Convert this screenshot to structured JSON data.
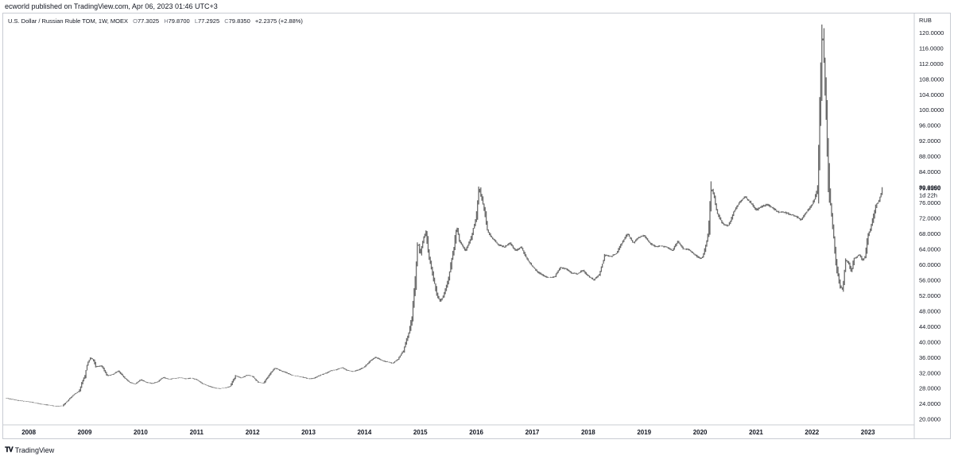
{
  "header": {
    "published": "ecworld published on TradingView.com, Apr 06, 2023 01:46 UTC+3"
  },
  "legend": {
    "symbol": "U.S. Dollar / Russian Ruble TOM, 1W, MOEX",
    "open_label": "O",
    "open": "77.3025",
    "high_label": "H",
    "high": "79.8700",
    "low_label": "L",
    "low": "77.2925",
    "close_label": "C",
    "close": "79.8350",
    "change": "+2.2375 (+2.88%)"
  },
  "price_axis": {
    "currency": "RUB"
  },
  "last_price": {
    "value": "79.8350",
    "countdown": "1d 22h"
  },
  "footer": {
    "brand": "TradingView"
  },
  "colors": {
    "candles": "#6b6b6b",
    "axis_border": "#c9ccd3",
    "text": "#131722"
  },
  "chart_data": {
    "type": "line",
    "title": "",
    "xlabel": "",
    "ylabel": "",
    "ylim": [
      18.7,
      124.7
    ],
    "xlim": [
      2007.6,
      2023.8
    ],
    "grid": false,
    "y_ticks": [
      20,
      24,
      28,
      32,
      36,
      40,
      44,
      48,
      52,
      56,
      60,
      64,
      68,
      72,
      76,
      80,
      84,
      88,
      92,
      96,
      100,
      104,
      108,
      112,
      116,
      120
    ],
    "y_tick_labels": [
      "20.0000",
      "24.0000",
      "28.0000",
      "32.0000",
      "36.0000",
      "40.0000",
      "44.0000",
      "48.0000",
      "52.0000",
      "56.0000",
      "60.0000",
      "64.0000",
      "68.0000",
      "72.0000",
      "76.0000",
      "80.0000",
      "84.0000",
      "88.0000",
      "92.0000",
      "96.0000",
      "100.0000",
      "104.0000",
      "108.0000",
      "112.0000",
      "116.0000",
      "120.0000"
    ],
    "x_ticks": [
      2008,
      2009,
      2010,
      2011,
      2012,
      2013,
      2014,
      2015,
      2016,
      2017,
      2018,
      2019,
      2020,
      2021,
      2022,
      2023
    ],
    "x_tick_labels": [
      "2008",
      "2009",
      "2010",
      "2011",
      "2012",
      "2013",
      "2014",
      "2015",
      "2016",
      "2017",
      "2018",
      "2019",
      "2020",
      "2021",
      "2022",
      "2023"
    ],
    "series": [
      {
        "values": [
          [
            2007.6,
            25.4
          ],
          [
            2007.8,
            24.8
          ],
          [
            2008.0,
            24.5
          ],
          [
            2008.2,
            23.9
          ],
          [
            2008.4,
            23.5
          ],
          [
            2008.5,
            23.3
          ],
          [
            2008.6,
            23.4
          ],
          [
            2008.7,
            24.8
          ],
          [
            2008.8,
            26.3
          ],
          [
            2008.9,
            27.2
          ],
          [
            2008.95,
            29.5
          ],
          [
            2009.0,
            31.0
          ],
          [
            2009.05,
            34.5
          ],
          [
            2009.1,
            35.8
          ],
          [
            2009.15,
            35.4
          ],
          [
            2009.2,
            33.5
          ],
          [
            2009.3,
            33.8
          ],
          [
            2009.4,
            31.2
          ],
          [
            2009.5,
            31.5
          ],
          [
            2009.6,
            32.5
          ],
          [
            2009.7,
            30.8
          ],
          [
            2009.8,
            29.5
          ],
          [
            2009.9,
            29.0
          ],
          [
            2010.0,
            30.2
          ],
          [
            2010.1,
            29.5
          ],
          [
            2010.2,
            29.2
          ],
          [
            2010.3,
            29.6
          ],
          [
            2010.4,
            30.8
          ],
          [
            2010.5,
            30.3
          ],
          [
            2010.6,
            30.5
          ],
          [
            2010.7,
            30.7
          ],
          [
            2010.8,
            30.4
          ],
          [
            2010.9,
            30.6
          ],
          [
            2011.0,
            30.2
          ],
          [
            2011.1,
            29.2
          ],
          [
            2011.2,
            28.6
          ],
          [
            2011.3,
            28.1
          ],
          [
            2011.4,
            27.9
          ],
          [
            2011.5,
            28.0
          ],
          [
            2011.6,
            28.5
          ],
          [
            2011.7,
            31.2
          ],
          [
            2011.8,
            30.6
          ],
          [
            2011.9,
            31.4
          ],
          [
            2012.0,
            31.0
          ],
          [
            2012.1,
            29.5
          ],
          [
            2012.2,
            29.3
          ],
          [
            2012.3,
            31.5
          ],
          [
            2012.4,
            33.2
          ],
          [
            2012.5,
            32.5
          ],
          [
            2012.6,
            32.0
          ],
          [
            2012.7,
            31.3
          ],
          [
            2012.8,
            31.1
          ],
          [
            2012.9,
            30.8
          ],
          [
            2013.0,
            30.4
          ],
          [
            2013.1,
            30.6
          ],
          [
            2013.2,
            31.3
          ],
          [
            2013.3,
            31.8
          ],
          [
            2013.4,
            32.5
          ],
          [
            2013.5,
            32.8
          ],
          [
            2013.6,
            33.3
          ],
          [
            2013.7,
            32.5
          ],
          [
            2013.8,
            32.3
          ],
          [
            2013.9,
            32.8
          ],
          [
            2014.0,
            33.5
          ],
          [
            2014.1,
            35.0
          ],
          [
            2014.2,
            36.0
          ],
          [
            2014.3,
            35.2
          ],
          [
            2014.4,
            34.8
          ],
          [
            2014.5,
            34.4
          ],
          [
            2014.6,
            35.5
          ],
          [
            2014.7,
            37.8
          ],
          [
            2014.75,
            40.5
          ],
          [
            2014.8,
            42.5
          ],
          [
            2014.85,
            46.5
          ],
          [
            2014.9,
            54.0
          ],
          [
            2014.95,
            66.0
          ],
          [
            2015.0,
            62.5
          ],
          [
            2015.05,
            66.5
          ],
          [
            2015.1,
            68.5
          ],
          [
            2015.15,
            62.5
          ],
          [
            2015.2,
            58.5
          ],
          [
            2015.3,
            52.0
          ],
          [
            2015.35,
            50.5
          ],
          [
            2015.4,
            51.5
          ],
          [
            2015.5,
            56.0
          ],
          [
            2015.6,
            64.5
          ],
          [
            2015.65,
            70.0
          ],
          [
            2015.7,
            66.0
          ],
          [
            2015.8,
            63.5
          ],
          [
            2015.9,
            66.5
          ],
          [
            2016.0,
            72.5
          ],
          [
            2016.05,
            80.0
          ],
          [
            2016.1,
            77.0
          ],
          [
            2016.15,
            73.5
          ],
          [
            2016.2,
            68.5
          ],
          [
            2016.3,
            66.5
          ],
          [
            2016.4,
            65.0
          ],
          [
            2016.5,
            64.5
          ],
          [
            2016.6,
            65.5
          ],
          [
            2016.7,
            63.5
          ],
          [
            2016.8,
            64.5
          ],
          [
            2016.9,
            61.5
          ],
          [
            2017.0,
            59.5
          ],
          [
            2017.1,
            58.0
          ],
          [
            2017.2,
            57.0
          ],
          [
            2017.3,
            56.5
          ],
          [
            2017.4,
            56.8
          ],
          [
            2017.5,
            59.2
          ],
          [
            2017.6,
            58.8
          ],
          [
            2017.7,
            57.8
          ],
          [
            2017.8,
            57.5
          ],
          [
            2017.9,
            58.5
          ],
          [
            2018.0,
            57.0
          ],
          [
            2018.1,
            56.0
          ],
          [
            2018.2,
            57.5
          ],
          [
            2018.3,
            62.5
          ],
          [
            2018.4,
            62.0
          ],
          [
            2018.5,
            62.8
          ],
          [
            2018.6,
            65.5
          ],
          [
            2018.7,
            68.0
          ],
          [
            2018.8,
            65.5
          ],
          [
            2018.9,
            67.0
          ],
          [
            2019.0,
            67.5
          ],
          [
            2019.1,
            65.5
          ],
          [
            2019.2,
            64.5
          ],
          [
            2019.3,
            64.8
          ],
          [
            2019.4,
            64.5
          ],
          [
            2019.5,
            63.5
          ],
          [
            2019.6,
            66.0
          ],
          [
            2019.7,
            64.0
          ],
          [
            2019.8,
            63.8
          ],
          [
            2019.9,
            62.5
          ],
          [
            2020.0,
            61.5
          ],
          [
            2020.05,
            62.0
          ],
          [
            2020.1,
            65.0
          ],
          [
            2020.15,
            68.0
          ],
          [
            2020.2,
            80.0
          ],
          [
            2020.25,
            77.5
          ],
          [
            2020.3,
            73.5
          ],
          [
            2020.4,
            70.5
          ],
          [
            2020.5,
            70.0
          ],
          [
            2020.55,
            71.5
          ],
          [
            2020.6,
            73.5
          ],
          [
            2020.7,
            76.0
          ],
          [
            2020.8,
            77.5
          ],
          [
            2020.9,
            76.0
          ],
          [
            2021.0,
            74.0
          ],
          [
            2021.1,
            75.0
          ],
          [
            2021.2,
            75.5
          ],
          [
            2021.3,
            74.5
          ],
          [
            2021.4,
            73.5
          ],
          [
            2021.5,
            73.5
          ],
          [
            2021.6,
            73.0
          ],
          [
            2021.7,
            72.5
          ],
          [
            2021.8,
            71.5
          ],
          [
            2021.9,
            73.5
          ],
          [
            2022.0,
            75.5
          ],
          [
            2022.05,
            77.0
          ],
          [
            2022.1,
            80.0
          ],
          [
            2022.15,
            104.0
          ],
          [
            2022.18,
            120.0
          ],
          [
            2022.2,
            118.0
          ],
          [
            2022.25,
            102.0
          ],
          [
            2022.3,
            80.0
          ],
          [
            2022.35,
            73.0
          ],
          [
            2022.4,
            65.0
          ],
          [
            2022.45,
            58.0
          ],
          [
            2022.5,
            54.5
          ],
          [
            2022.55,
            53.5
          ],
          [
            2022.6,
            61.0
          ],
          [
            2022.65,
            60.5
          ],
          [
            2022.7,
            58.0
          ],
          [
            2022.75,
            61.5
          ],
          [
            2022.8,
            62.0
          ],
          [
            2022.85,
            62.5
          ],
          [
            2022.9,
            61.0
          ],
          [
            2022.95,
            62.0
          ],
          [
            2023.0,
            67.5
          ],
          [
            2023.05,
            69.5
          ],
          [
            2023.1,
            72.5
          ],
          [
            2023.15,
            75.5
          ],
          [
            2023.2,
            76.5
          ],
          [
            2023.26,
            79.8
          ]
        ]
      }
    ]
  }
}
